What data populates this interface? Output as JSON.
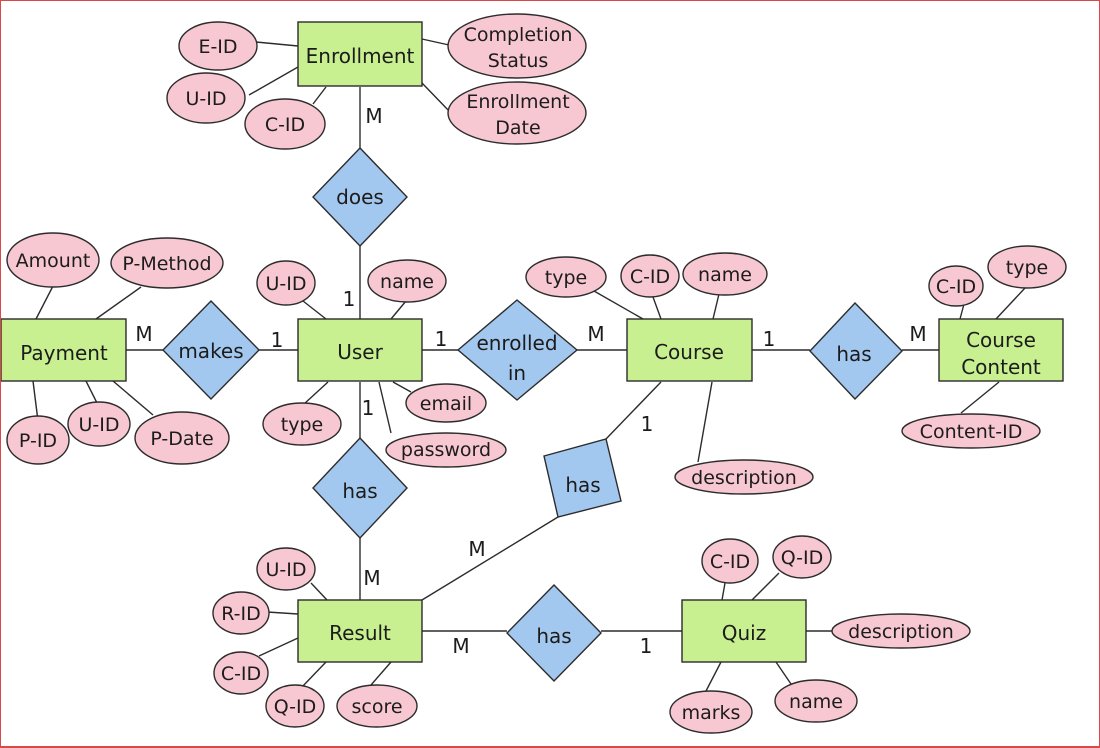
{
  "entities": {
    "enrollment": "Enrollment",
    "payment": "Payment",
    "user": "User",
    "course": "Course",
    "course_content": [
      "Course",
      "Content"
    ],
    "result": "Result",
    "quiz": "Quiz"
  },
  "relationships": {
    "does": "does",
    "makes": "makes",
    "enrolled_in": [
      "enrolled",
      "in"
    ],
    "course_has_content": "has",
    "course_has_result": "has",
    "user_has_result": "has",
    "result_has_quiz": "has"
  },
  "attributes": {
    "enrollment": {
      "e_id": "E-ID",
      "u_id": "U-ID",
      "c_id": "C-ID",
      "completion_status": [
        "Completion",
        "Status"
      ],
      "enrollment_date": [
        "Enrollment",
        "Date"
      ]
    },
    "payment": {
      "amount": "Amount",
      "p_method": "P-Method",
      "p_id": "P-ID",
      "u_id": "U-ID",
      "p_date": "P-Date"
    },
    "user": {
      "u_id": "U-ID",
      "name": "name",
      "type": "type",
      "email": "email",
      "password": "password"
    },
    "course": {
      "type": "type",
      "c_id": "C-ID",
      "name": "name",
      "description": "description"
    },
    "course_content": {
      "c_id": "C-ID",
      "type": "type",
      "content_id": "Content-ID"
    },
    "result": {
      "u_id": "U-ID",
      "r_id": "R-ID",
      "c_id": "C-ID",
      "q_id": "Q-ID",
      "score": "score"
    },
    "quiz": {
      "c_id": "C-ID",
      "q_id": "Q-ID",
      "description": "description",
      "marks": "marks",
      "name": "name"
    }
  },
  "cardinalities": {
    "enrollment_does": "M",
    "does_user": "1",
    "payment_makes": "M",
    "makes_user": "1",
    "user_enrolled": "1",
    "enrolled_course": "M",
    "course_has_content": "1",
    "has_content": "M",
    "course_has_result": "1",
    "has_result_course": "M",
    "user_has_result": "1",
    "has_result_user": "M",
    "result_has_quiz": "M",
    "has_quiz": "1"
  },
  "colors": {
    "entity": "#c8ef90",
    "relationship": "#a3c8ef",
    "attribute": "#f7c7d2",
    "border": "#d84a4a"
  }
}
